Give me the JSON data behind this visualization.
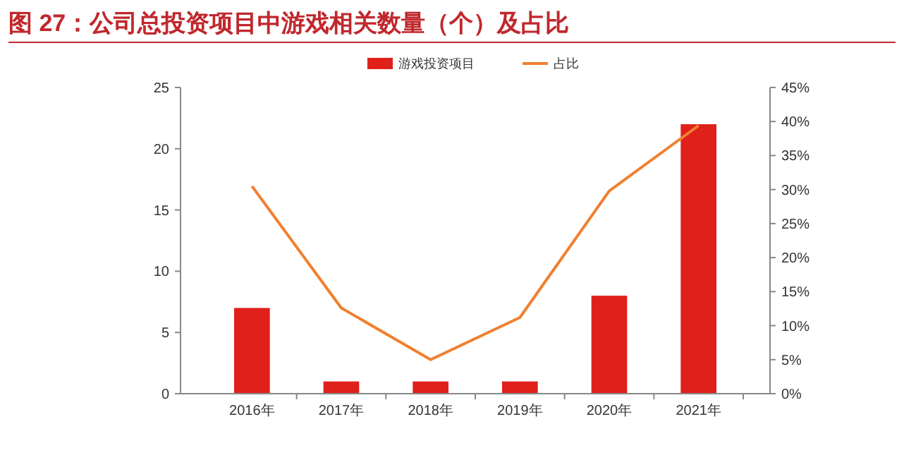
{
  "chart_data": {
    "type": "bar",
    "title": "图 27：公司总投资项目中游戏相关数量（个）及占比",
    "categories": [
      "2016年",
      "2017年",
      "2018年",
      "2019年",
      "2020年",
      "2021年"
    ],
    "series": [
      {
        "name": "游戏投资项目",
        "color": "#e0201b",
        "values": [
          7,
          1,
          1,
          1,
          8,
          22
        ]
      },
      {
        "name": "占比",
        "type": "line",
        "axis": "y2",
        "color": "#f08030",
        "values": [
          30.5,
          12.6,
          5,
          11.2,
          29.8,
          39.4
        ]
      }
    ],
    "ylim": [
      0,
      25
    ],
    "yticks": [
      0,
      5,
      10,
      15,
      20,
      25
    ],
    "y2lim": [
      0,
      45
    ],
    "y2ticks": [
      {
        "value": 0,
        "label": "0%"
      },
      {
        "value": 5,
        "label": "5%"
      },
      {
        "value": 10,
        "label": "10%"
      },
      {
        "value": 15,
        "label": "15%"
      },
      {
        "value": 20,
        "label": "20%"
      },
      {
        "value": 25,
        "label": "25%"
      },
      {
        "value": 30,
        "label": "30%"
      },
      {
        "value": 35,
        "label": "35%"
      },
      {
        "value": 40,
        "label": "40%"
      },
      {
        "value": 45,
        "label": "45%"
      }
    ],
    "legend": "top",
    "grid": false,
    "marker": "none"
  }
}
